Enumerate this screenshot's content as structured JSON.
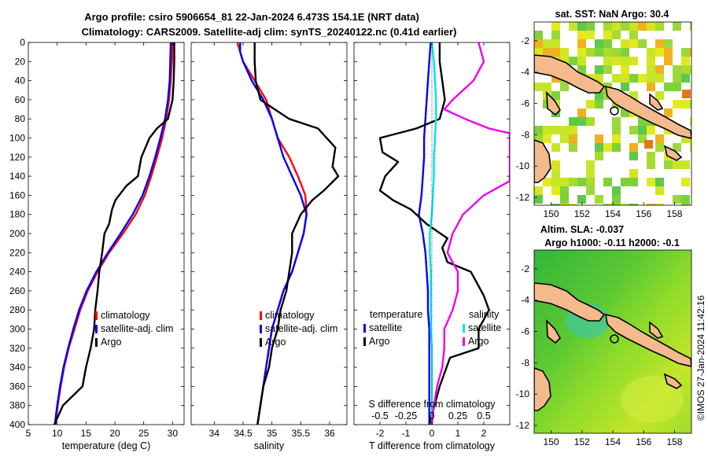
{
  "header": {
    "title_line1": "Argo profile: csiro 5906654_81 22-Jan-2024 6.473S 154.1E (NRT data)",
    "title_line2": "Climatology: CARS2009. Satellite-adj clim: synTS_20240122.nc (0.41d earlier)"
  },
  "colors": {
    "climatology": "#ff0000",
    "satellite": "#0000ff",
    "argo": "#000000",
    "sat_diff_temp": "#00e5e5",
    "sal_diff": "#ee00ee",
    "land": "#f4b98c"
  },
  "footer": {
    "credit": "©IMOS 27-Jan-2024 11:42:16"
  },
  "chart_data": [
    {
      "id": "temperature",
      "type": "line",
      "xlabel": "temperature (deg C)",
      "ylabel": "",
      "xlim": [
        5,
        32
      ],
      "ylim": [
        400,
        0
      ],
      "xticks": [
        5,
        10,
        15,
        20,
        25,
        30
      ],
      "yticks": [
        0,
        20,
        40,
        60,
        80,
        100,
        120,
        140,
        160,
        180,
        200,
        220,
        240,
        260,
        280,
        300,
        320,
        340,
        360,
        380,
        400
      ],
      "legend": [
        "climatology",
        "satellite-adj. clim",
        "Argo"
      ],
      "series": [
        {
          "name": "climatology",
          "color": "#ff0000",
          "points": [
            [
              30.0,
              0
            ],
            [
              29.9,
              20
            ],
            [
              29.7,
              40
            ],
            [
              29.4,
              60
            ],
            [
              28.9,
              80
            ],
            [
              28.2,
              100
            ],
            [
              27.3,
              120
            ],
            [
              26.3,
              140
            ],
            [
              25.2,
              160
            ],
            [
              23.6,
              180
            ],
            [
              21.4,
              200
            ],
            [
              19.0,
              220
            ],
            [
              17.0,
              240
            ],
            [
              15.3,
              260
            ],
            [
              14.0,
              280
            ],
            [
              13.0,
              300
            ],
            [
              12.0,
              320
            ],
            [
              11.2,
              340
            ],
            [
              10.6,
              360
            ],
            [
              10.1,
              380
            ],
            [
              9.7,
              400
            ]
          ]
        },
        {
          "name": "satellite-adj. clim",
          "color": "#0000ff",
          "points": [
            [
              29.7,
              0
            ],
            [
              29.6,
              20
            ],
            [
              29.5,
              40
            ],
            [
              29.2,
              60
            ],
            [
              28.7,
              80
            ],
            [
              27.9,
              100
            ],
            [
              27.0,
              120
            ],
            [
              26.0,
              140
            ],
            [
              24.8,
              160
            ],
            [
              23.1,
              180
            ],
            [
              21.0,
              200
            ],
            [
              18.8,
              220
            ],
            [
              16.8,
              240
            ],
            [
              15.1,
              260
            ],
            [
              13.8,
              280
            ],
            [
              12.8,
              300
            ],
            [
              11.9,
              320
            ],
            [
              11.1,
              340
            ],
            [
              10.5,
              360
            ],
            [
              10.0,
              380
            ],
            [
              9.6,
              400
            ]
          ]
        },
        {
          "name": "Argo",
          "color": "#000000",
          "points": [
            [
              30.3,
              0
            ],
            [
              30.3,
              20
            ],
            [
              30.2,
              40
            ],
            [
              30.0,
              60
            ],
            [
              29.2,
              80
            ],
            [
              27.3,
              90
            ],
            [
              26.0,
              100
            ],
            [
              25.3,
              110
            ],
            [
              24.6,
              120
            ],
            [
              24.0,
              140
            ],
            [
              22.0,
              150
            ],
            [
              20.1,
              165
            ],
            [
              19.5,
              175
            ],
            [
              19.0,
              190
            ],
            [
              18.2,
              200
            ],
            [
              17.8,
              220
            ],
            [
              17.3,
              240
            ],
            [
              17.0,
              260
            ],
            [
              16.6,
              280
            ],
            [
              16.4,
              300
            ],
            [
              15.8,
              320
            ],
            [
              15.0,
              340
            ],
            [
              14.4,
              360
            ],
            [
              11.0,
              380
            ],
            [
              9.5,
              400
            ]
          ]
        }
      ]
    },
    {
      "id": "salinity",
      "type": "line",
      "xlabel": "salinity",
      "ylabel": "",
      "xlim": [
        33.6,
        36.3
      ],
      "ylim": [
        400,
        0
      ],
      "xticks": [
        34,
        34.5,
        35,
        35.5,
        36
      ],
      "legend": [
        "climatology",
        "satellite-adj. clim",
        "Argo"
      ],
      "series": [
        {
          "name": "climatology",
          "color": "#ff0000",
          "points": [
            [
              34.4,
              0
            ],
            [
              34.5,
              20
            ],
            [
              34.7,
              40
            ],
            [
              34.9,
              60
            ],
            [
              35.0,
              80
            ],
            [
              35.1,
              100
            ],
            [
              35.3,
              120
            ],
            [
              35.45,
              140
            ],
            [
              35.58,
              160
            ],
            [
              35.6,
              180
            ],
            [
              35.55,
              200
            ],
            [
              35.45,
              220
            ],
            [
              35.35,
              240
            ],
            [
              35.2,
              260
            ],
            [
              35.1,
              280
            ],
            [
              35.0,
              300
            ],
            [
              34.95,
              320
            ],
            [
              34.9,
              340
            ],
            [
              34.85,
              360
            ],
            [
              34.8,
              380
            ],
            [
              34.75,
              400
            ]
          ]
        },
        {
          "name": "satellite-adj. clim",
          "color": "#0000ff",
          "points": [
            [
              34.45,
              0
            ],
            [
              34.45,
              10
            ],
            [
              34.5,
              20
            ],
            [
              34.65,
              40
            ],
            [
              34.85,
              60
            ],
            [
              35.0,
              80
            ],
            [
              35.1,
              100
            ],
            [
              35.2,
              120
            ],
            [
              35.35,
              140
            ],
            [
              35.5,
              160
            ],
            [
              35.6,
              180
            ],
            [
              35.55,
              200
            ],
            [
              35.45,
              220
            ],
            [
              35.35,
              240
            ],
            [
              35.2,
              260
            ],
            [
              35.1,
              280
            ],
            [
              35.0,
              300
            ],
            [
              34.95,
              320
            ],
            [
              34.9,
              340
            ],
            [
              34.85,
              360
            ],
            [
              34.8,
              380
            ],
            [
              34.75,
              400
            ]
          ]
        },
        {
          "name": "Argo",
          "color": "#000000",
          "points": [
            [
              34.7,
              0
            ],
            [
              34.7,
              20
            ],
            [
              34.72,
              40
            ],
            [
              34.8,
              60
            ],
            [
              35.05,
              70
            ],
            [
              35.3,
              80
            ],
            [
              35.8,
              90
            ],
            [
              36.1,
              110
            ],
            [
              36.05,
              130
            ],
            [
              36.15,
              140
            ],
            [
              35.9,
              155
            ],
            [
              35.7,
              165
            ],
            [
              35.5,
              180
            ],
            [
              35.35,
              200
            ],
            [
              35.35,
              220
            ],
            [
              35.3,
              240
            ],
            [
              35.25,
              260
            ],
            [
              35.15,
              280
            ],
            [
              35.1,
              300
            ],
            [
              35.0,
              320
            ],
            [
              34.95,
              340
            ],
            [
              34.85,
              360
            ],
            [
              34.8,
              380
            ],
            [
              34.75,
              400
            ]
          ]
        }
      ]
    },
    {
      "id": "difference",
      "type": "line",
      "xlabel": "T difference from climatology",
      "xlabel2": "S difference from climatology",
      "xlim": [
        -3.0,
        3.0
      ],
      "x2ticks_label": [
        "-0.5",
        "-0.25",
        "0",
        "0.25",
        "0.5"
      ],
      "x2ticks": [
        -0.5,
        -0.25,
        0,
        0.25,
        0.5
      ],
      "x2lim": [
        -0.75,
        0.75
      ],
      "ylim": [
        400,
        0
      ],
      "xticks": [
        -2,
        -1,
        0,
        1,
        2
      ],
      "legend_temperature_title": "temperature",
      "legend_salinity_title": "salinity",
      "legend_labels": [
        "satellite",
        "Argo",
        "satellite",
        "Argo"
      ],
      "series": [
        {
          "name": "temperature satellite",
          "axis": "T",
          "color": "#0000ff",
          "points": [
            [
              -0.05,
              0
            ],
            [
              -0.1,
              20
            ],
            [
              -0.15,
              40
            ],
            [
              -0.2,
              60
            ],
            [
              -0.25,
              80
            ],
            [
              -0.3,
              100
            ],
            [
              -0.3,
              120
            ],
            [
              -0.35,
              140
            ],
            [
              -0.4,
              160
            ],
            [
              -0.5,
              180
            ],
            [
              -0.35,
              200
            ],
            [
              -0.25,
              220
            ],
            [
              -0.2,
              240
            ],
            [
              -0.15,
              260
            ],
            [
              -0.15,
              280
            ],
            [
              -0.1,
              300
            ],
            [
              -0.1,
              320
            ],
            [
              -0.1,
              340
            ],
            [
              -0.1,
              360
            ],
            [
              -0.1,
              380
            ],
            [
              -0.1,
              400
            ]
          ]
        },
        {
          "name": "temperature Argo",
          "axis": "T",
          "color": "#000000",
          "points": [
            [
              0.3,
              0
            ],
            [
              0.3,
              20
            ],
            [
              0.4,
              40
            ],
            [
              0.5,
              60
            ],
            [
              0.3,
              80
            ],
            [
              -0.6,
              90
            ],
            [
              -2.0,
              100
            ],
            [
              -1.9,
              115
            ],
            [
              -1.3,
              125
            ],
            [
              -1.8,
              140
            ],
            [
              -2.0,
              155
            ],
            [
              -1.5,
              165
            ],
            [
              -0.8,
              175
            ],
            [
              -0.2,
              190
            ],
            [
              0.6,
              205
            ],
            [
              0.4,
              215
            ],
            [
              0.6,
              230
            ],
            [
              1.5,
              240
            ],
            [
              2.0,
              265
            ],
            [
              2.2,
              280
            ],
            [
              1.8,
              300
            ],
            [
              1.8,
              320
            ],
            [
              0.7,
              330
            ],
            [
              0.3,
              360
            ],
            [
              -0.1,
              400
            ]
          ]
        },
        {
          "name": "salinity satellite",
          "axis": "S",
          "color": "#00e5e5",
          "points": [
            [
              0.0,
              0
            ],
            [
              0.02,
              20
            ],
            [
              0.03,
              40
            ],
            [
              0.04,
              60
            ],
            [
              0.04,
              80
            ],
            [
              0.03,
              100
            ],
            [
              0.02,
              120
            ],
            [
              0.02,
              140
            ],
            [
              0.01,
              160
            ],
            [
              0.0,
              180
            ],
            [
              -0.02,
              200
            ],
            [
              -0.02,
              220
            ],
            [
              -0.01,
              240
            ],
            [
              -0.01,
              260
            ],
            [
              -0.01,
              280
            ],
            [
              -0.01,
              300
            ],
            [
              0.0,
              320
            ],
            [
              0.0,
              340
            ],
            [
              0.0,
              360
            ],
            [
              0.0,
              380
            ],
            [
              0.0,
              400
            ]
          ]
        },
        {
          "name": "salinity Argo",
          "axis": "S",
          "color": "#ee00ee",
          "points": [
            [
              0.45,
              0
            ],
            [
              0.5,
              20
            ],
            [
              0.4,
              40
            ],
            [
              0.2,
              60
            ],
            [
              0.12,
              70
            ],
            [
              0.32,
              80
            ],
            [
              0.55,
              90
            ],
            [
              0.75,
              95
            ],
            [
              0.75,
              145
            ],
            [
              0.5,
              160
            ],
            [
              0.3,
              180
            ],
            [
              0.2,
              200
            ],
            [
              0.15,
              220
            ],
            [
              0.25,
              240
            ],
            [
              0.25,
              260
            ],
            [
              0.2,
              280
            ],
            [
              0.12,
              300
            ],
            [
              0.12,
              320
            ],
            [
              0.1,
              340
            ],
            [
              0.05,
              360
            ],
            [
              0.02,
              380
            ],
            [
              0.0,
              400
            ]
          ]
        }
      ]
    },
    {
      "id": "sst-map",
      "type": "heatmap",
      "title": "sat. SST: NaN Argo: 30.4",
      "xticks": [
        150,
        152,
        154,
        156,
        158
      ],
      "yticks": [
        -2,
        -4,
        -6,
        -8,
        -10,
        -12
      ],
      "xlim": [
        148.9,
        159.1
      ],
      "ylim": [
        -12.5,
        -0.8
      ],
      "argo_position": {
        "lon": 154.1,
        "lat": -6.473
      }
    },
    {
      "id": "sla-map",
      "type": "heatmap",
      "title1": "Altim. SLA: -0.037",
      "title2": "Argo h1000: -0.11 h2000: -0.1",
      "xticks": [
        150,
        152,
        154,
        156,
        158
      ],
      "yticks": [
        -2,
        -4,
        -6,
        -8,
        -10,
        -12
      ],
      "xlim": [
        148.9,
        159.1
      ],
      "ylim": [
        -12.5,
        -0.8
      ],
      "argo_position": {
        "lon": 154.1,
        "lat": -6.473
      }
    }
  ]
}
